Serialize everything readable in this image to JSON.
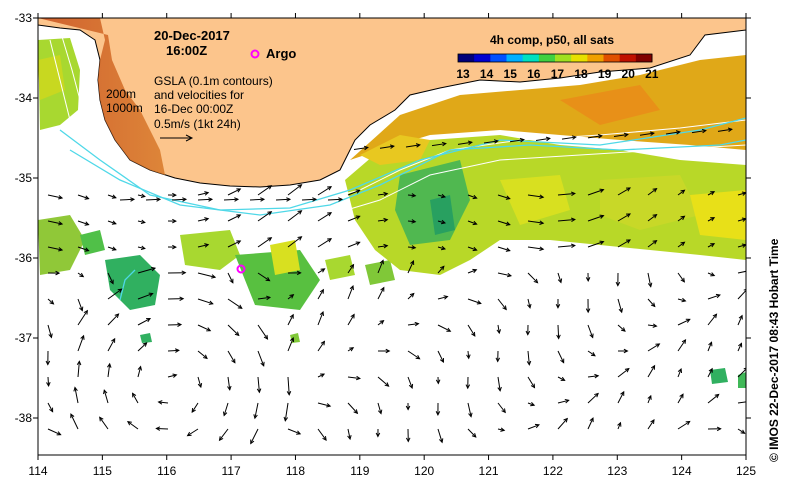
{
  "title": {
    "date": "20-Dec-2017",
    "time": "16:00Z"
  },
  "argo_label": "Argo",
  "legend": {
    "line1": "GSLA (0.1m contours)",
    "line2": "and velocities for",
    "line3": "16-Dec 00:00Z",
    "line4": "0.5m/s (1kt 24h)"
  },
  "depth_labels": {
    "shallow": "200m",
    "deep": "1000m"
  },
  "colorbar": {
    "title": "4h comp, p50, all sats",
    "ticks": [
      "13",
      "14",
      "15",
      "16",
      "17",
      "18",
      "19",
      "20",
      "21"
    ],
    "colors": [
      "#00007a",
      "#0000d0",
      "#0050ff",
      "#00b0ff",
      "#00e0c0",
      "#40d040",
      "#a0e020",
      "#e8e000",
      "#f0a000",
      "#e05000",
      "#c01000",
      "#800000"
    ]
  },
  "axes": {
    "x_ticks": [
      "114",
      "115",
      "116",
      "117",
      "118",
      "119",
      "120",
      "121",
      "122",
      "123",
      "124",
      "125"
    ],
    "y_ticks": [
      "-33",
      "-34",
      "-35",
      "-36",
      "-37",
      "-38"
    ]
  },
  "credit": "© IMOS 22-Dec-2017 08:43 Hobart Time",
  "colors": {
    "land": "#fcc58c",
    "coast": "#000000",
    "contour": "#4fd8e8",
    "isobath": "#ffffff",
    "argo": "#ff00ff"
  }
}
